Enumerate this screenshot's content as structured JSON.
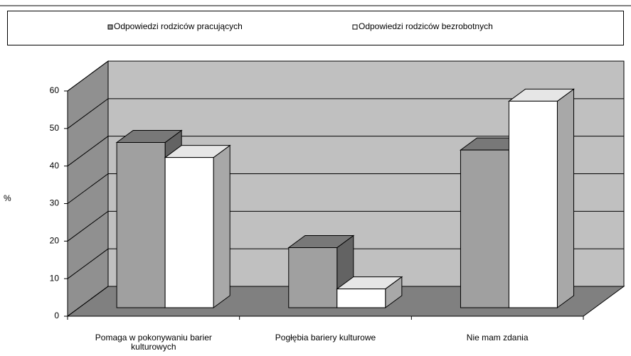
{
  "chart_data": {
    "type": "bar3d",
    "categories": [
      "Pomaga w pokonywaniu barier kulturowych",
      "Pogłębia bariery kulturowe",
      "Nie mam zdania"
    ],
    "series": [
      {
        "name": "Odpowiedzi rodziców pracujących",
        "color": "#a0a0a0",
        "values": [
          44,
          16,
          42
        ]
      },
      {
        "name": "Odpowiedzi rodziców bezrobotnych",
        "color": "#ffffff",
        "values": [
          40,
          5,
          55
        ]
      }
    ],
    "y_label": "%",
    "ylim": [
      0,
      60
    ],
    "yticks": [
      0,
      10,
      20,
      30,
      40,
      50,
      60
    ],
    "grid": true,
    "legend": "top"
  }
}
